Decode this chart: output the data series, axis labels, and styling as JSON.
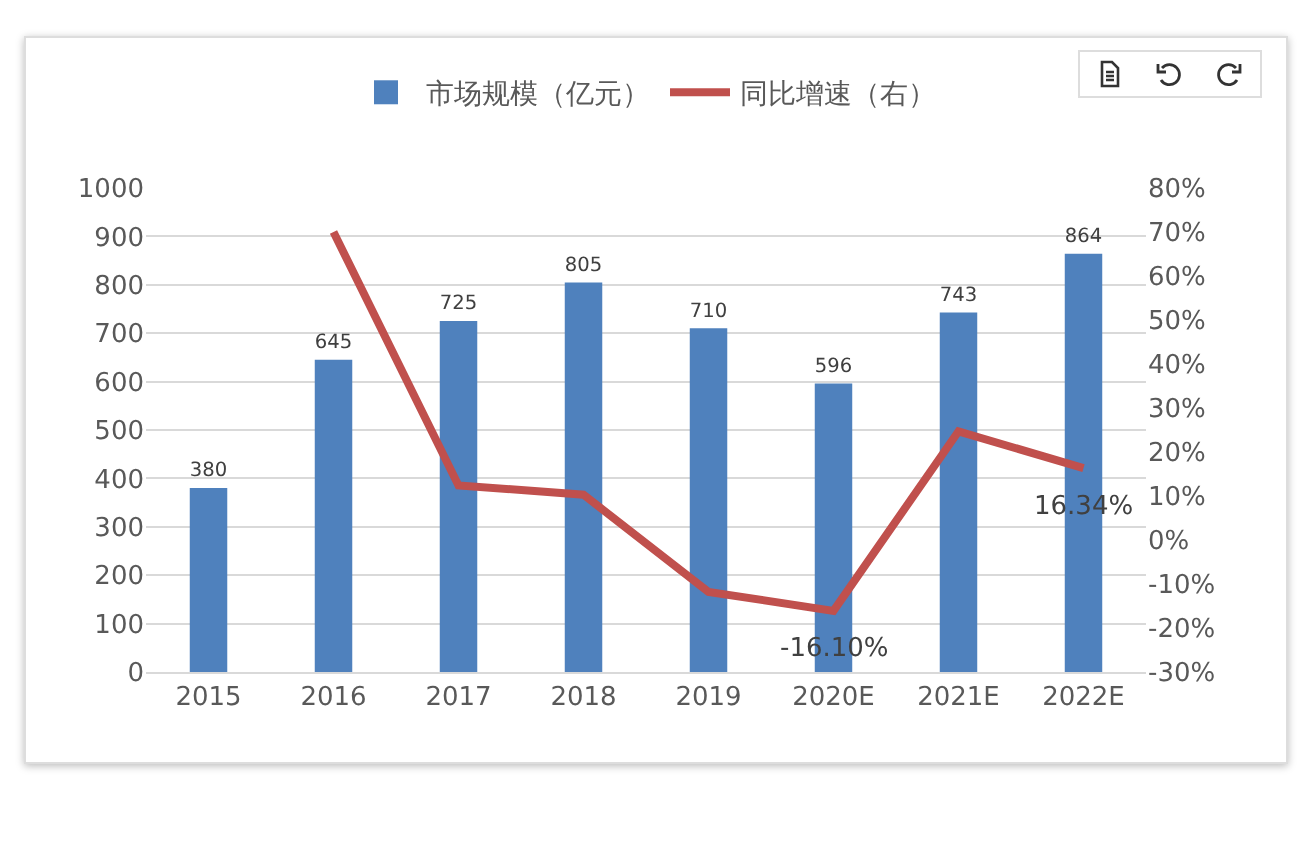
{
  "chart_data": {
    "type": "bar",
    "categories": [
      "2015",
      "2016",
      "2017",
      "2018",
      "2019",
      "2020E",
      "2021E",
      "2022E"
    ],
    "series": [
      {
        "name": "市场规模（亿元）",
        "color": "#4f81bd",
        "values": [
          380,
          645,
          725,
          805,
          710,
          596,
          743,
          864
        ]
      },
      {
        "name": "同比增速（右）",
        "type": "line",
        "axis": "y2",
        "color": "#c0504d",
        "values": [
          null,
          70,
          12.4,
          10.3,
          -11.8,
          -16.1,
          24.7,
          16.34
        ],
        "value_labels": [
          null,
          null,
          null,
          null,
          null,
          "-16.10%",
          null,
          "16.34%"
        ]
      }
    ],
    "data_labels": true,
    "ylim": [
      0,
      1000
    ],
    "yticks": [
      0,
      100,
      200,
      300,
      400,
      500,
      600,
      700,
      800,
      900,
      1000
    ],
    "y2lim": [
      -30,
      80
    ],
    "y2ticks": [
      {
        "value": -30,
        "label": "-30%"
      },
      {
        "value": -20,
        "label": "-20%"
      },
      {
        "value": -10,
        "label": "-10%"
      },
      {
        "value": 0,
        "label": "0%"
      },
      {
        "value": 10,
        "label": "10%"
      },
      {
        "value": 20,
        "label": "20%"
      },
      {
        "value": 30,
        "label": "30%"
      },
      {
        "value": 40,
        "label": "40%"
      },
      {
        "value": 50,
        "label": "50%"
      },
      {
        "value": 60,
        "label": "60%"
      },
      {
        "value": 70,
        "label": "70%"
      },
      {
        "value": 80,
        "label": "80%"
      }
    ],
    "grid": "y",
    "legend": "top",
    "marker": "none",
    "line_style": "solid"
  }
}
